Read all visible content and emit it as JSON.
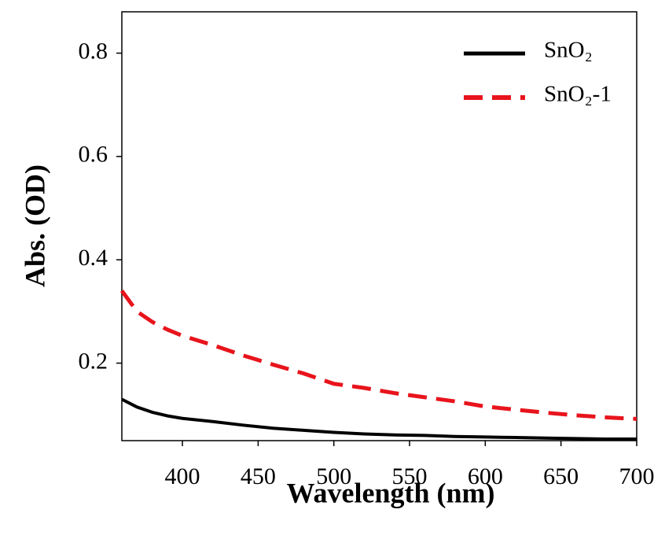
{
  "chart_data": {
    "type": "line",
    "xlabel": "Wavelength (nm)",
    "ylabel": "Abs. (OD)",
    "x": [
      360,
      370,
      380,
      390,
      400,
      420,
      440,
      460,
      480,
      500,
      520,
      540,
      560,
      580,
      600,
      620,
      640,
      660,
      680,
      700
    ],
    "series": [
      {
        "name": "SnO₂",
        "color": "#000000",
        "dash": "solid",
        "values": [
          0.13,
          0.115,
          0.105,
          0.098,
          0.093,
          0.087,
          0.08,
          0.074,
          0.07,
          0.066,
          0.063,
          0.061,
          0.06,
          0.058,
          0.057,
          0.056,
          0.055,
          0.054,
          0.053,
          0.053
        ]
      },
      {
        "name": "SnO₂-1",
        "color": "#e8141c",
        "dash": "dashed",
        "values": [
          0.34,
          0.3,
          0.28,
          0.265,
          0.253,
          0.235,
          0.215,
          0.197,
          0.18,
          0.16,
          0.152,
          0.142,
          0.134,
          0.126,
          0.116,
          0.11,
          0.104,
          0.099,
          0.095,
          0.092
        ]
      }
    ],
    "xlim": [
      360,
      700
    ],
    "ylim": [
      0.05,
      0.88
    ],
    "xticks": [
      400,
      450,
      500,
      550,
      600,
      650,
      700
    ],
    "yticks": [
      0.2,
      0.4,
      0.6,
      0.8
    ],
    "legend": "upper right"
  }
}
